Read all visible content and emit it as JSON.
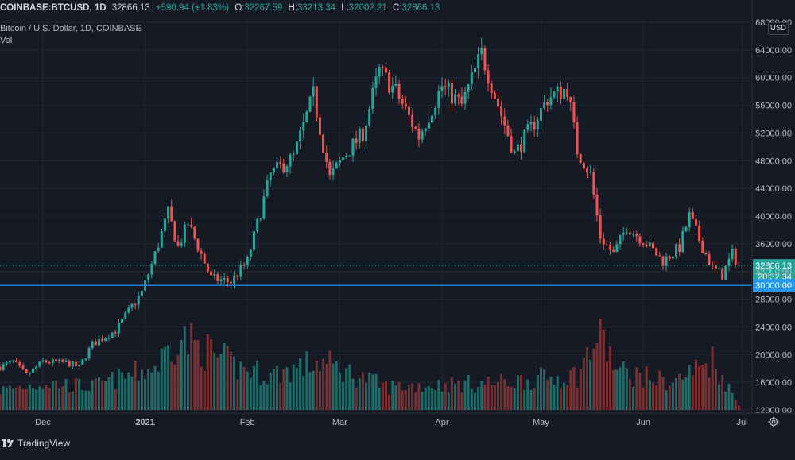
{
  "header": {
    "symbol": "COINBASE:BTCUSD, 1D",
    "last": "32866.13",
    "change": "+590.94 (+1.83%)",
    "o_label": "O:",
    "o_value": "32267.59",
    "h_label": "H:",
    "h_value": "33213.34",
    "l_label": "L:",
    "l_value": "32002.21",
    "c_label": "C:",
    "c_value": "32866.13"
  },
  "subtitle": "Bitcoin / U.S. Dollar, 1D, COINBASE",
  "volume_label": "Vol",
  "currency_button": "USD",
  "brand": "TradingView",
  "last_price_tag": "32866.13",
  "countdown_tag": "20:32:34",
  "level_tag": "30000.00",
  "colors": {
    "up": "#26a69a",
    "down": "#ef5350",
    "up_vol": "#1e6b68",
    "down_vol": "#7a2f31",
    "level_line": "#2196f3",
    "background": "#161a25",
    "grid": "#232734"
  },
  "icons": {
    "settings": "gear-icon",
    "logo": "tradingview-logo-icon"
  },
  "chart_data": {
    "type": "candlestick",
    "ylim": [
      12000,
      68000
    ],
    "y_ticks": [
      "12000.00",
      "16000.00",
      "20000.00",
      "24000.00",
      "28000.00",
      "32000.00",
      "36000.00",
      "40000.00",
      "44000.00",
      "48000.00",
      "52000.00",
      "56000.00",
      "60000.00",
      "64000.00",
      "68000.00"
    ],
    "x_ticks": [
      {
        "label": "Dec",
        "date": "2020-12-01"
      },
      {
        "label": "2021",
        "date": "2021-01-01"
      },
      {
        "label": "Feb",
        "date": "2021-02-01"
      },
      {
        "label": "Mar",
        "date": "2021-03-01"
      },
      {
        "label": "Apr",
        "date": "2021-04-01"
      },
      {
        "label": "May",
        "date": "2021-05-01"
      },
      {
        "label": "Jun",
        "date": "2021-06-01"
      },
      {
        "label": "Jul",
        "date": "2021-07-01"
      }
    ],
    "x_range": [
      "2020-11-18",
      "2021-07-04"
    ],
    "last_price": 32866.13,
    "horizontal_level": 30000,
    "grid": true,
    "series": [
      {
        "name": "Price",
        "ohlc_keypoints": [
          {
            "date": "2020-11-18",
            "close": 18200
          },
          {
            "date": "2020-11-22",
            "close": 19000
          },
          {
            "date": "2020-11-26",
            "close": 17000
          },
          {
            "date": "2020-12-01",
            "close": 19000
          },
          {
            "date": "2020-12-08",
            "close": 18800
          },
          {
            "date": "2020-12-12",
            "close": 18200
          },
          {
            "date": "2020-12-16",
            "close": 21500
          },
          {
            "date": "2020-12-23",
            "close": 23500
          },
          {
            "date": "2020-12-31",
            "close": 29000
          },
          {
            "date": "2021-01-03",
            "close": 33000
          },
          {
            "date": "2021-01-08",
            "close": 40500
          },
          {
            "date": "2021-01-11",
            "close": 35500
          },
          {
            "date": "2021-01-14",
            "close": 39000
          },
          {
            "date": "2021-01-21",
            "close": 31000
          },
          {
            "date": "2021-01-27",
            "close": 30500
          },
          {
            "date": "2021-02-01",
            "close": 33500
          },
          {
            "date": "2021-02-08",
            "close": 46000
          },
          {
            "date": "2021-02-15",
            "close": 48500
          },
          {
            "date": "2021-02-21",
            "close": 57500
          },
          {
            "date": "2021-02-26",
            "close": 45500
          },
          {
            "date": "2021-03-02",
            "close": 48500
          },
          {
            "date": "2021-03-08",
            "close": 52000
          },
          {
            "date": "2021-03-13",
            "close": 61000
          },
          {
            "date": "2021-03-18",
            "close": 58000
          },
          {
            "date": "2021-03-25",
            "close": 51500
          },
          {
            "date": "2021-04-01",
            "close": 58800
          },
          {
            "date": "2021-04-07",
            "close": 56000
          },
          {
            "date": "2021-04-13",
            "close": 63500
          },
          {
            "date": "2021-04-18",
            "close": 56000
          },
          {
            "date": "2021-04-23",
            "close": 49000
          },
          {
            "date": "2021-04-29",
            "close": 53500
          },
          {
            "date": "2021-05-03",
            "close": 57000
          },
          {
            "date": "2021-05-09",
            "close": 58500
          },
          {
            "date": "2021-05-12",
            "close": 49500
          },
          {
            "date": "2021-05-16",
            "close": 46000
          },
          {
            "date": "2021-05-19",
            "close": 37000
          },
          {
            "date": "2021-05-23",
            "close": 34500
          },
          {
            "date": "2021-05-27",
            "close": 38500
          },
          {
            "date": "2021-06-01",
            "close": 36500
          },
          {
            "date": "2021-06-07",
            "close": 33500
          },
          {
            "date": "2021-06-12",
            "close": 35500
          },
          {
            "date": "2021-06-15",
            "close": 40000
          },
          {
            "date": "2021-06-19",
            "close": 35500
          },
          {
            "date": "2021-06-22",
            "close": 32500
          },
          {
            "date": "2021-06-25",
            "close": 31500
          },
          {
            "date": "2021-06-28",
            "close": 34500
          },
          {
            "date": "2021-06-30",
            "close": 32866
          }
        ]
      }
    ],
    "volume_keypoints": [
      {
        "date": "2020-11-18",
        "value": 0.25
      },
      {
        "date": "2020-12-01",
        "value": 0.35
      },
      {
        "date": "2020-12-16",
        "value": 0.3
      },
      {
        "date": "2021-01-04",
        "value": 0.55
      },
      {
        "date": "2021-01-11",
        "value": 0.95
      },
      {
        "date": "2021-01-29",
        "value": 0.55
      },
      {
        "date": "2021-02-08",
        "value": 0.45
      },
      {
        "date": "2021-02-23",
        "value": 0.62
      },
      {
        "date": "2021-03-15",
        "value": 0.3
      },
      {
        "date": "2021-04-18",
        "value": 0.35
      },
      {
        "date": "2021-05-12",
        "value": 0.45
      },
      {
        "date": "2021-05-19",
        "value": 1.0
      },
      {
        "date": "2021-05-24",
        "value": 0.5
      },
      {
        "date": "2021-06-10",
        "value": 0.35
      },
      {
        "date": "2021-06-22",
        "value": 0.65
      },
      {
        "date": "2021-06-30",
        "value": 0.05
      }
    ]
  }
}
